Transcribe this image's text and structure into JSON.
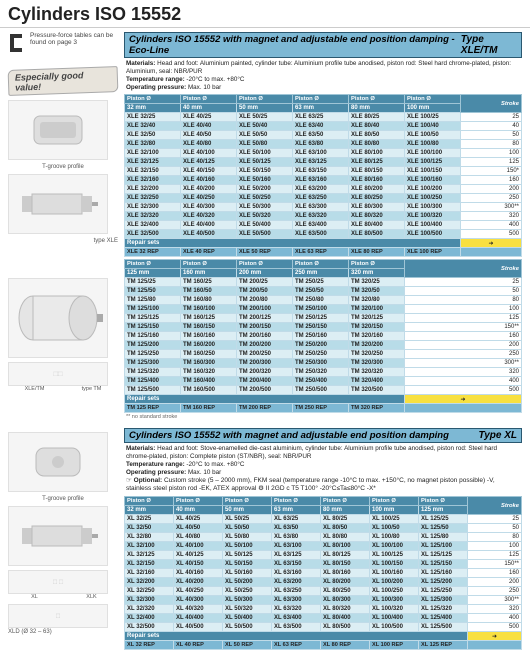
{
  "page_title": "Cylinders ISO 15552",
  "clamp_note": "Pressure-force tables can be found on page 3",
  "egv": "Especially good value!",
  "left": {
    "tgroove": "T-groove profile",
    "type_xle": "type XLE",
    "type_tm": "type TM",
    "xle_tm": "XLE/TM",
    "xl": "XL",
    "xlk": "XLK",
    "xld": "XLD (Ø 32 – 63)"
  },
  "footnote_std": "** no standard stroke",
  "sec1": {
    "title": "Cylinders ISO 15552 with magnet and adjustable end position damping - Eco-Line",
    "type": "Type XLE/TM",
    "mat": "Head and foot: Aluminium painted, cylinder tube: Aluminium profile tube anodised, piston rod: Steel hard chrome-plated, piston: Aluminium, seal: NBR/PUR",
    "temp": "-20°C to max. +80°C",
    "press": "Max. 10 bar"
  },
  "sec2": {
    "title": "Cylinders ISO 15552 with magnet and adjustable end position damping",
    "type": "Type XL",
    "mat": "Head and foot: Stove-enamelled die-cast aluminium, cylinder tube: Aluminium profile tube anodised, piston rod: Steel hard chrome-plated, piston: Complete piston (ST/NBR), seal: NBR/PUR",
    "temp": "-20°C to max. +80°C",
    "press": "Max. 10 bar",
    "opt": "Custom stroke (5 – 2000 mm), FKM seal (temperature range -10°C to max. +150°C, no magnet piston possible) -V, stainless steel piston rod -EK, ATEX approval ⚙ II 2GD c T5 T100° -20°C≤Ta≤80°C -X*"
  },
  "piston_label": "Piston Ø",
  "stroke_label": "Stroke",
  "repair": "Repair sets",
  "t1": {
    "cols_mm": [
      "32 mm",
      "40 mm",
      "50 mm",
      "63 mm",
      "80 mm",
      "100 mm"
    ],
    "rows": [
      [
        "XLE 32/25",
        "XLE 40/25",
        "XLE 50/25",
        "XLE 63/25",
        "XLE 80/25",
        "XLE 100/25",
        "25"
      ],
      [
        "XLE 32/40",
        "XLE 40/40",
        "XLE 50/40",
        "XLE 63/40",
        "XLE 80/40",
        "XLE 100/40",
        "40"
      ],
      [
        "XLE 32/50",
        "XLE 40/50",
        "XLE 50/50",
        "XLE 63/50",
        "XLE 80/50",
        "XLE 100/50",
        "50"
      ],
      [
        "XLE 32/80",
        "XLE 40/80",
        "XLE 50/80",
        "XLE 63/80",
        "XLE 80/80",
        "XLE 100/80",
        "80"
      ],
      [
        "XLE 32/100",
        "XLE 40/100",
        "XLE 50/100",
        "XLE 63/100",
        "XLE 80/100",
        "XLE 100/100",
        "100"
      ],
      [
        "XLE 32/125",
        "XLE 40/125",
        "XLE 50/125",
        "XLE 63/125",
        "XLE 80/125",
        "XLE 100/125",
        "125"
      ],
      [
        "XLE 32/150",
        "XLE 40/150",
        "XLE 50/150",
        "XLE 63/150",
        "XLE 80/150",
        "XLE 100/150",
        "150*"
      ],
      [
        "XLE 32/160",
        "XLE 40/160",
        "XLE 50/160",
        "XLE 63/160",
        "XLE 80/160",
        "XLE 100/160",
        "160"
      ],
      [
        "XLE 32/200",
        "XLE 40/200",
        "XLE 50/200",
        "XLE 63/200",
        "XLE 80/200",
        "XLE 100/200",
        "200"
      ],
      [
        "XLE 32/250",
        "XLE 40/250",
        "XLE 50/250",
        "XLE 63/250",
        "XLE 80/250",
        "XLE 100/250",
        "250"
      ],
      [
        "XLE 32/300",
        "XLE 40/300",
        "XLE 50/300",
        "XLE 63/300",
        "XLE 80/300",
        "XLE 100/300",
        "300**"
      ],
      [
        "XLE 32/320",
        "XLE 40/320",
        "XLE 50/320",
        "XLE 63/320",
        "XLE 80/320",
        "XLE 100/320",
        "320"
      ],
      [
        "XLE 32/400",
        "XLE 40/400",
        "XLE 50/400",
        "XLE 63/400",
        "XLE 80/400",
        "XLE 100/400",
        "400"
      ],
      [
        "XLE 32/500",
        "XLE 40/500",
        "XLE 50/500",
        "XLE 63/500",
        "XLE 80/500",
        "XLE 100/500",
        "500"
      ]
    ],
    "repair": [
      "XLE 32 REP",
      "XLE 40 REP",
      "XLE 50 REP",
      "XLE 63 REP",
      "XLE 80 REP",
      "XLE 100 REP"
    ]
  },
  "t2": {
    "cols_mm": [
      "125 mm",
      "160 mm",
      "200 mm",
      "250 mm",
      "320 mm"
    ],
    "rows": [
      [
        "TM 125/25",
        "TM 160/25",
        "TM 200/25",
        "TM 250/25",
        "TM 320/25",
        "25"
      ],
      [
        "TM 125/50",
        "TM 160/50",
        "TM 200/50",
        "TM 250/50",
        "TM 320/50",
        "50"
      ],
      [
        "TM 125/80",
        "TM 160/80",
        "TM 200/80",
        "TM 250/80",
        "TM 320/80",
        "80"
      ],
      [
        "TM 125/100",
        "TM 160/100",
        "TM 200/100",
        "TM 250/100",
        "TM 320/100",
        "100"
      ],
      [
        "TM 125/125",
        "TM 160/125",
        "TM 200/125",
        "TM 250/125",
        "TM 320/125",
        "125"
      ],
      [
        "TM 125/150",
        "TM 160/150",
        "TM 200/150",
        "TM 250/150",
        "TM 320/150",
        "150**"
      ],
      [
        "TM 125/160",
        "TM 160/160",
        "TM 200/160",
        "TM 250/160",
        "TM 320/160",
        "160"
      ],
      [
        "TM 125/200",
        "TM 160/200",
        "TM 200/200",
        "TM 250/200",
        "TM 320/200",
        "200"
      ],
      [
        "TM 125/250",
        "TM 160/250",
        "TM 200/250",
        "TM 250/250",
        "TM 320/250",
        "250"
      ],
      [
        "TM 125/300",
        "TM 160/300",
        "TM 200/300",
        "TM 250/300",
        "TM 320/300",
        "300**"
      ],
      [
        "TM 125/320",
        "TM 160/320",
        "TM 200/320",
        "TM 250/320",
        "TM 320/320",
        "320"
      ],
      [
        "TM 125/400",
        "TM 160/400",
        "TM 200/400",
        "TM 250/400",
        "TM 320/400",
        "400"
      ],
      [
        "TM 125/500",
        "TM 160/500",
        "TM 200/500",
        "TM 250/500",
        "TM 320/500",
        "500"
      ]
    ],
    "repair": [
      "TM 125 REP",
      "TM 160 REP",
      "TM 200 REP",
      "TM 250 REP",
      "TM 320 REP"
    ]
  },
  "t3": {
    "cols_mm": [
      "32 mm",
      "40 mm",
      "50 mm",
      "63 mm",
      "80 mm",
      "100 mm",
      "125 mm"
    ],
    "rows": [
      [
        "XL 32/25",
        "XL 40/25",
        "XL 50/25",
        "XL 63/25",
        "XL 80/25",
        "XL 100/25",
        "XL 125/25",
        "25"
      ],
      [
        "XL 32/50",
        "XL 40/50",
        "XL 50/50",
        "XL 63/50",
        "XL 80/50",
        "XL 100/50",
        "XL 125/50",
        "50"
      ],
      [
        "XL 32/80",
        "XL 40/80",
        "XL 50/80",
        "XL 63/80",
        "XL 80/80",
        "XL 100/80",
        "XL 125/80",
        "80"
      ],
      [
        "XL 32/100",
        "XL 40/100",
        "XL 50/100",
        "XL 63/100",
        "XL 80/100",
        "XL 100/100",
        "XL 125/100",
        "100"
      ],
      [
        "XL 32/125",
        "XL 40/125",
        "XL 50/125",
        "XL 63/125",
        "XL 80/125",
        "XL 100/125",
        "XL 125/125",
        "125"
      ],
      [
        "XL 32/150",
        "XL 40/150",
        "XL 50/150",
        "XL 63/150",
        "XL 80/150",
        "XL 100/150",
        "XL 125/150",
        "150**"
      ],
      [
        "XL 32/160",
        "XL 40/160",
        "XL 50/160",
        "XL 63/160",
        "XL 80/160",
        "XL 100/160",
        "XL 125/160",
        "160"
      ],
      [
        "XL 32/200",
        "XL 40/200",
        "XL 50/200",
        "XL 63/200",
        "XL 80/200",
        "XL 100/200",
        "XL 125/200",
        "200"
      ],
      [
        "XL 32/250",
        "XL 40/250",
        "XL 50/250",
        "XL 63/250",
        "XL 80/250",
        "XL 100/250",
        "XL 125/250",
        "250"
      ],
      [
        "XL 32/300",
        "XL 40/300",
        "XL 50/300",
        "XL 63/300",
        "XL 80/300",
        "XL 100/300",
        "XL 125/300",
        "300**"
      ],
      [
        "XL 32/320",
        "XL 40/320",
        "XL 50/320",
        "XL 63/320",
        "XL 80/320",
        "XL 100/320",
        "XL 125/320",
        "320"
      ],
      [
        "XL 32/400",
        "XL 40/400",
        "XL 50/400",
        "XL 63/400",
        "XL 80/400",
        "XL 100/400",
        "XL 125/400",
        "400"
      ],
      [
        "XL 32/500",
        "XL 40/500",
        "XL 50/500",
        "XL 63/500",
        "XL 80/500",
        "XL 100/500",
        "XL 125/500",
        "500"
      ]
    ],
    "repair": [
      "XL 32 REP",
      "XL 40 REP",
      "XL 50 REP",
      "XL 63 REP",
      "XL 80 REP",
      "XL 100 REP",
      "XL 125 REP"
    ]
  }
}
